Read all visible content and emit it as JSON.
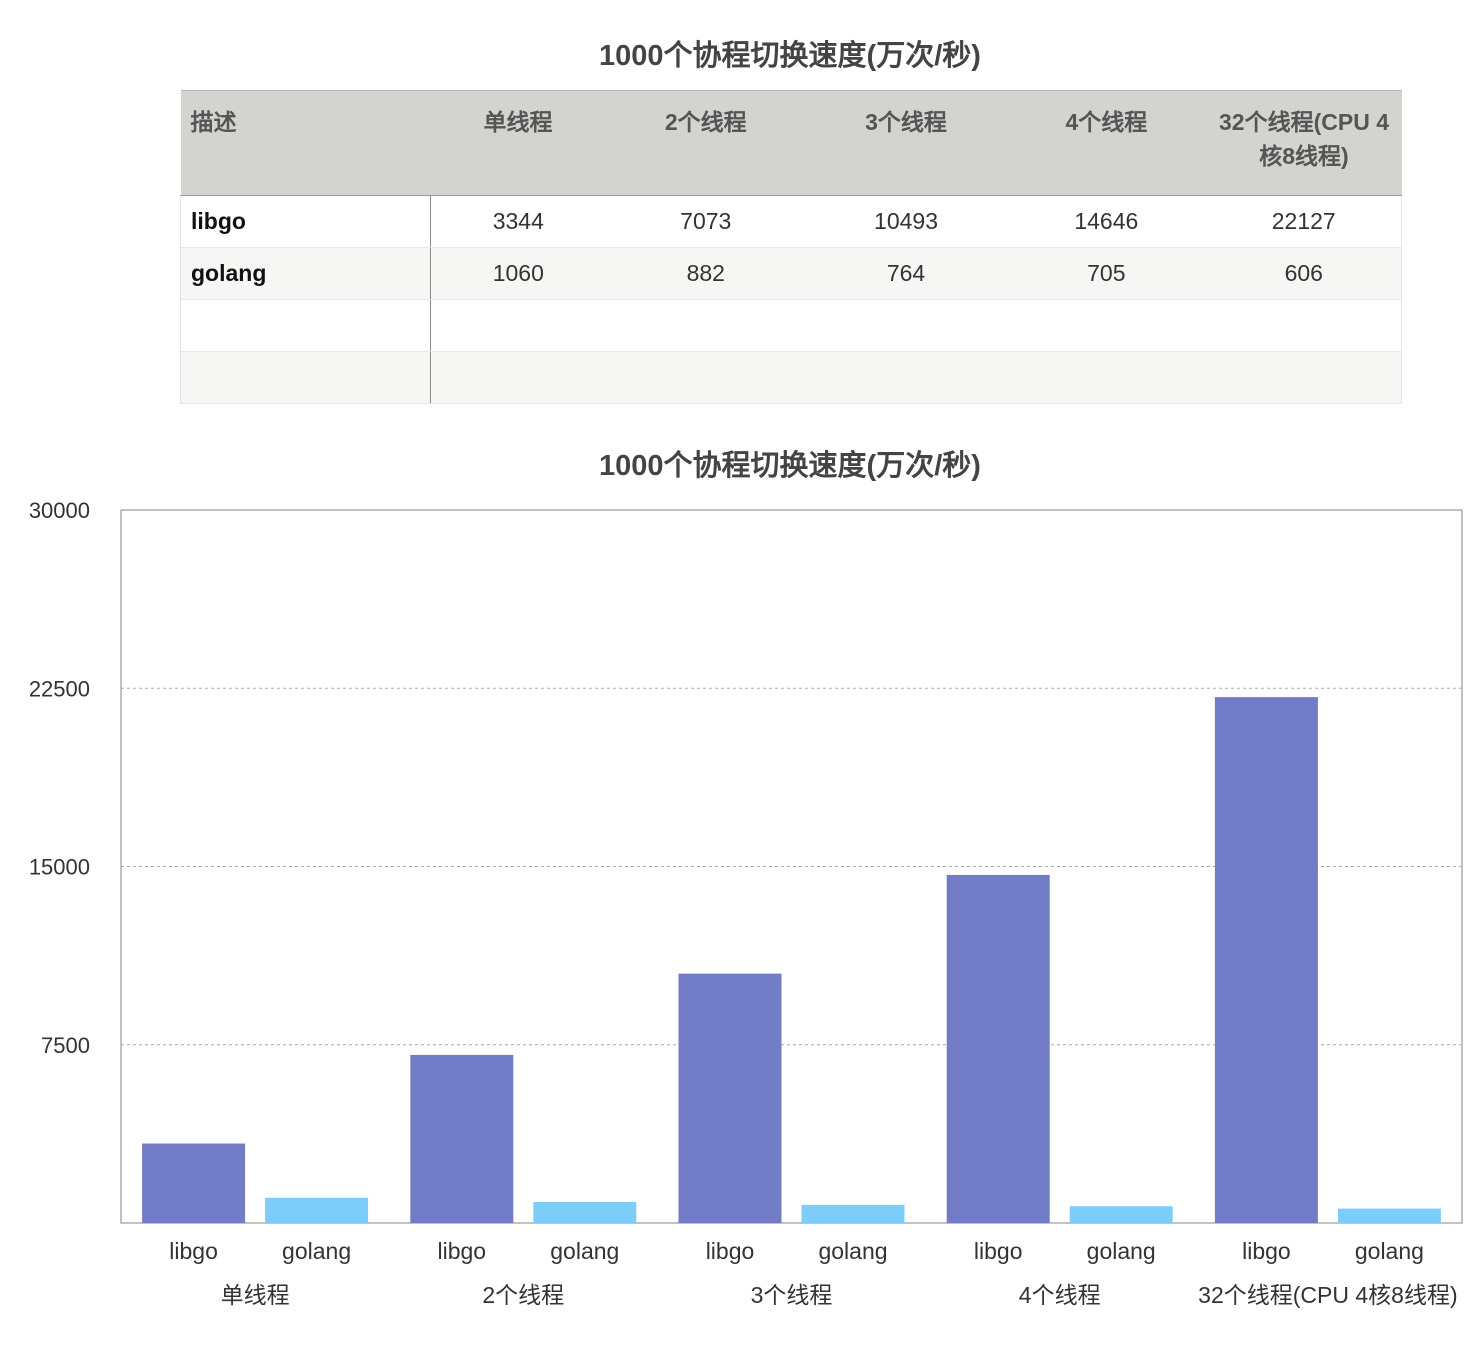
{
  "table": {
    "title": "1000个协程切换速度(万次/秒)",
    "headers": [
      "描述",
      "单线程",
      "2个线程",
      "3个线程",
      "4个线程",
      "32个线程(CPU 4核8线程)"
    ],
    "rows": [
      {
        "label": "libgo",
        "values": [
          "3344",
          "7073",
          "10493",
          "14646",
          "22127"
        ]
      },
      {
        "label": "golang",
        "values": [
          "1060",
          "882",
          "764",
          "705",
          "606"
        ]
      },
      {
        "label": "",
        "values": []
      },
      {
        "label": "",
        "values": []
      }
    ]
  },
  "chart_data": {
    "type": "bar",
    "title": "1000个协程切换速度(万次/秒)",
    "categories": [
      "单线程",
      "2个线程",
      "3个线程",
      "4个线程",
      "32个线程(CPU 4核8线程)"
    ],
    "series": [
      {
        "name": "libgo",
        "values": [
          3344,
          7073,
          10493,
          14646,
          22127
        ],
        "color": "#727bc5"
      },
      {
        "name": "golang",
        "values": [
          1060,
          882,
          764,
          705,
          606
        ],
        "color": "#7dcdf9"
      }
    ],
    "ylim": [
      0,
      30000
    ],
    "yticks": [
      7500,
      15000,
      22500,
      30000
    ],
    "grid": true,
    "xlabel": "",
    "ylabel": ""
  }
}
